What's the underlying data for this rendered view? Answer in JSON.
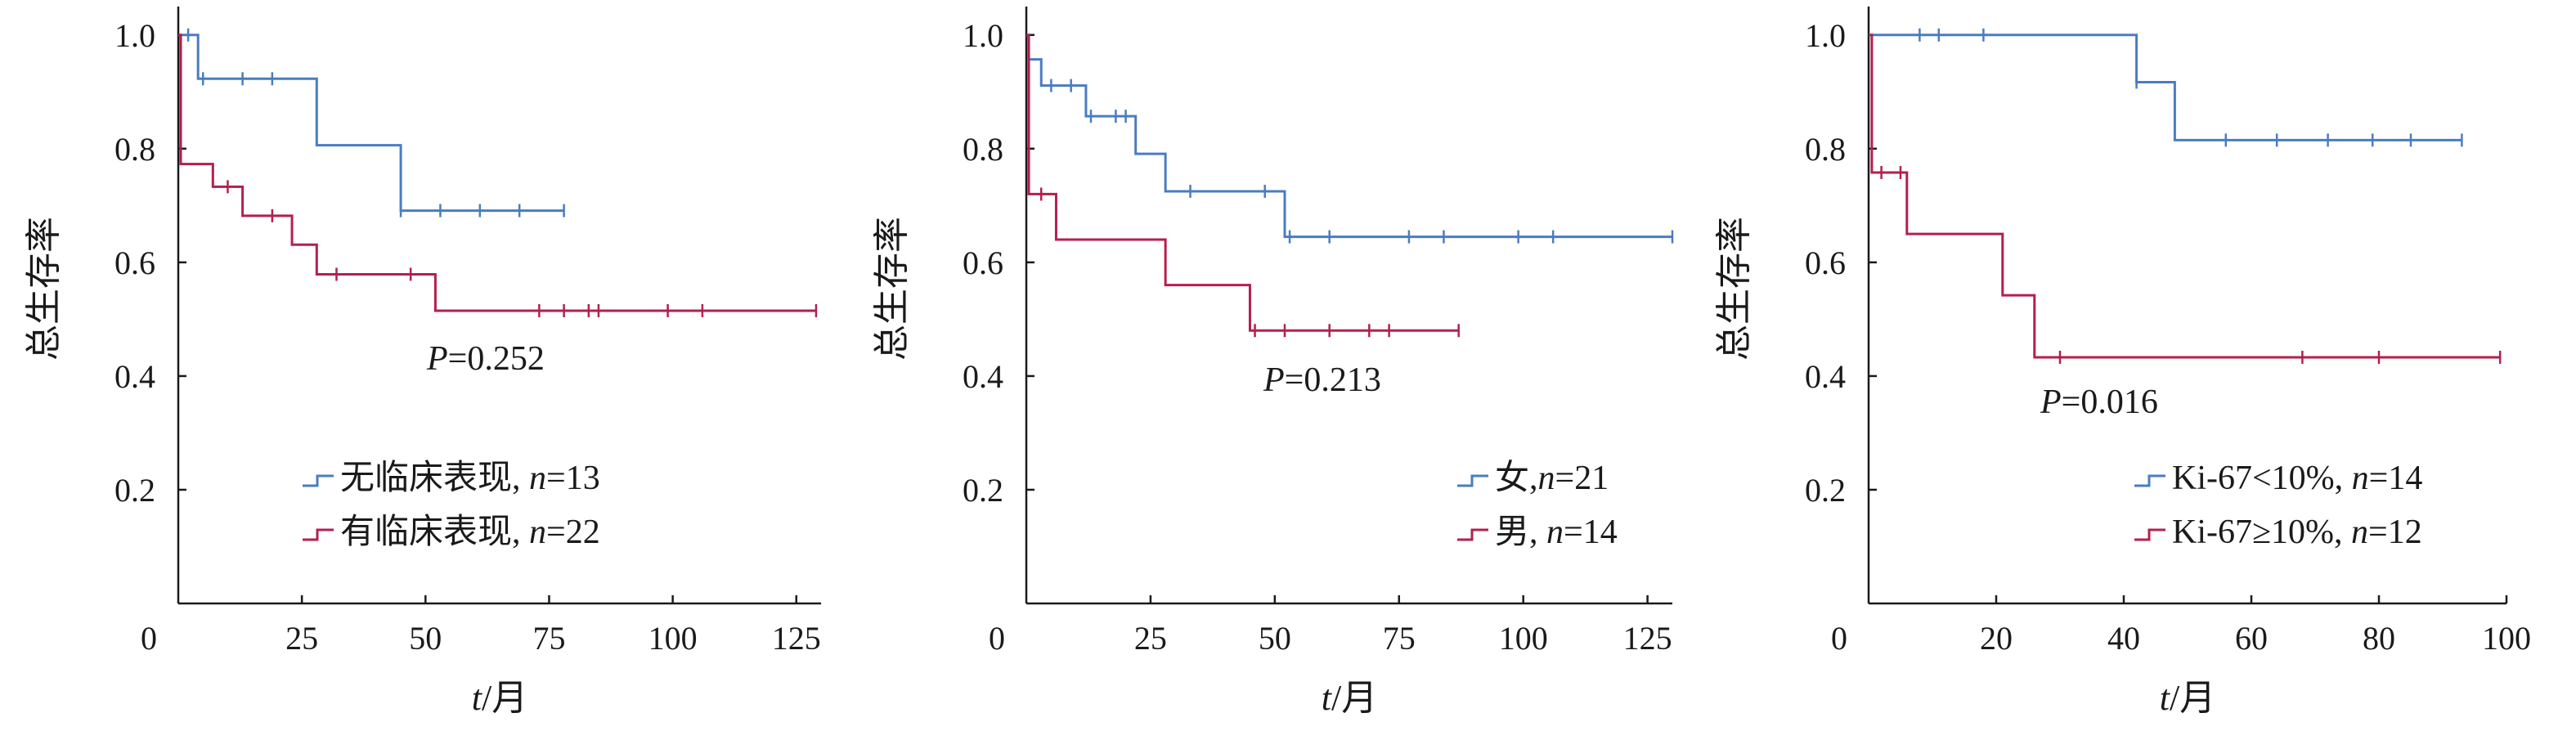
{
  "colors": {
    "blue": "#4a7cc1",
    "red": "#b3204d",
    "axis": "#1a1a1a"
  },
  "chart_data": [
    {
      "type": "line",
      "subtype": "kaplan-meier",
      "xlabel_italic": "t",
      "xlabel_rest": "/月",
      "ylabel": "总生存率",
      "xlim": [
        0,
        130
      ],
      "ylim": [
        0,
        1.05
      ],
      "xticks": [
        "0",
        "25",
        "50",
        "75",
        "100",
        "125"
      ],
      "xtick_values": [
        0,
        25,
        50,
        75,
        100,
        125
      ],
      "yticks": [
        "0.2",
        "0.4",
        "0.6",
        "0.8",
        "1.0"
      ],
      "ytick_values": [
        0.2,
        0.4,
        0.6,
        0.8,
        1.0
      ],
      "pvalue_label": "P",
      "pvalue_text": "=0.252",
      "legend_position": "bottom-center",
      "series": [
        {
          "legend_main": "无临床表现, ",
          "legend_n_label": "n",
          "legend_n_value": "=13",
          "color": "#4a7cc1",
          "steps": [
            [
              0,
              1.0
            ],
            [
              4,
              0.923
            ],
            [
              28,
              0.806
            ],
            [
              45,
              0.691
            ],
            [
              78,
              0.691
            ]
          ],
          "censors": [
            [
              2,
              1.0
            ],
            [
              5,
              0.923
            ],
            [
              13,
              0.923
            ],
            [
              19,
              0.923
            ],
            [
              45,
              0.691
            ],
            [
              53,
              0.691
            ],
            [
              61,
              0.691
            ],
            [
              69,
              0.691
            ],
            [
              78,
              0.691
            ]
          ]
        },
        {
          "legend_main": "有临床表现, ",
          "legend_n_label": "n",
          "legend_n_value": "=22",
          "color": "#b3204d",
          "steps": [
            [
              0,
              1.0
            ],
            [
              0.5,
              0.773
            ],
            [
              7,
              0.733
            ],
            [
              13,
              0.682
            ],
            [
              23,
              0.631
            ],
            [
              28,
              0.579
            ],
            [
              52,
              0.515
            ],
            [
              129,
              0.515
            ]
          ],
          "censors": [
            [
              10,
              0.733
            ],
            [
              19,
              0.682
            ],
            [
              32,
              0.579
            ],
            [
              47,
              0.579
            ],
            [
              73,
              0.515
            ],
            [
              78,
              0.515
            ],
            [
              83,
              0.515
            ],
            [
              85,
              0.515
            ],
            [
              99,
              0.515
            ],
            [
              106,
              0.515
            ],
            [
              129,
              0.515
            ]
          ]
        }
      ]
    },
    {
      "type": "line",
      "subtype": "kaplan-meier",
      "xlabel_italic": "t",
      "xlabel_rest": "/月",
      "ylabel": "总生存率",
      "xlim": [
        0,
        130
      ],
      "ylim": [
        0,
        1.05
      ],
      "xticks": [
        "0",
        "25",
        "50",
        "75",
        "100",
        "125"
      ],
      "xtick_values": [
        0,
        25,
        50,
        75,
        100,
        125
      ],
      "yticks": [
        "0.2",
        "0.4",
        "0.6",
        "0.8",
        "1.0"
      ],
      "ytick_values": [
        0.2,
        0.4,
        0.6,
        0.8,
        1.0
      ],
      "pvalue_label": "P",
      "pvalue_text": "=0.213",
      "legend_position": "bottom-right",
      "series": [
        {
          "legend_main": "女,",
          "legend_n_label": "n",
          "legend_n_value": "=21",
          "color": "#4a7cc1",
          "steps": [
            [
              0,
              1.0
            ],
            [
              0.5,
              0.957
            ],
            [
              3,
              0.911
            ],
            [
              12,
              0.857
            ],
            [
              22,
              0.791
            ],
            [
              28,
              0.725
            ],
            [
              52,
              0.645
            ],
            [
              130,
              0.645
            ]
          ],
          "censors": [
            [
              5,
              0.911
            ],
            [
              9,
              0.911
            ],
            [
              13,
              0.857
            ],
            [
              18,
              0.857
            ],
            [
              20,
              0.857
            ],
            [
              33,
              0.725
            ],
            [
              48,
              0.725
            ],
            [
              53,
              0.645
            ],
            [
              61,
              0.645
            ],
            [
              77,
              0.645
            ],
            [
              84,
              0.645
            ],
            [
              99,
              0.645
            ],
            [
              106,
              0.645
            ],
            [
              130,
              0.645
            ]
          ]
        },
        {
          "legend_main": "男, ",
          "legend_n_label": "n",
          "legend_n_value": "=14",
          "color": "#b3204d",
          "steps": [
            [
              0,
              1.0
            ],
            [
              0.5,
              0.72
            ],
            [
              6,
              0.64
            ],
            [
              28,
              0.56
            ],
            [
              45,
              0.48
            ],
            [
              87,
              0.48
            ]
          ],
          "censors": [
            [
              3,
              0.72
            ],
            [
              46,
              0.48
            ],
            [
              52,
              0.48
            ],
            [
              61,
              0.48
            ],
            [
              69,
              0.48
            ],
            [
              73,
              0.48
            ],
            [
              87,
              0.48
            ]
          ]
        }
      ]
    },
    {
      "type": "line",
      "subtype": "kaplan-meier",
      "xlabel_italic": "t",
      "xlabel_rest": "/月",
      "ylabel": "总生存率",
      "xlim": [
        0,
        100
      ],
      "ylim": [
        0,
        1.05
      ],
      "xticks": [
        "0",
        "20",
        "40",
        "60",
        "80",
        "100"
      ],
      "xtick_values": [
        0,
        20,
        40,
        60,
        80,
        100
      ],
      "yticks": [
        "0.2",
        "0.4",
        "0.6",
        "0.8",
        "1.0"
      ],
      "ytick_values": [
        0.2,
        0.4,
        0.6,
        0.8,
        1.0
      ],
      "pvalue_label": "P",
      "pvalue_text": "=0.016",
      "legend_position": "bottom-right",
      "series": [
        {
          "legend_main": "Ki-67<10%, ",
          "legend_n_label": "n",
          "legend_n_value": "=14",
          "color": "#4a7cc1",
          "steps": [
            [
              0,
              1.0
            ],
            [
              42,
              0.917
            ],
            [
              48,
              0.815
            ],
            [
              93,
              0.815
            ]
          ],
          "censors": [
            [
              8,
              1.0
            ],
            [
              11,
              1.0
            ],
            [
              18,
              1.0
            ],
            [
              42,
              0.917
            ],
            [
              56,
              0.815
            ],
            [
              64,
              0.815
            ],
            [
              72,
              0.815
            ],
            [
              79,
              0.815
            ],
            [
              85,
              0.815
            ],
            [
              93,
              0.815
            ]
          ]
        },
        {
          "legend_main": "Ki-67≥10%, ",
          "legend_n_label": "n",
          "legend_n_value": "=12",
          "color": "#b3204d",
          "steps": [
            [
              0,
              1.0
            ],
            [
              0.5,
              0.758
            ],
            [
              6,
              0.65
            ],
            [
              21,
              0.542
            ],
            [
              26,
              0.433
            ],
            [
              99,
              0.433
            ]
          ],
          "censors": [
            [
              2,
              0.758
            ],
            [
              5,
              0.758
            ],
            [
              30,
              0.433
            ],
            [
              68,
              0.433
            ],
            [
              80,
              0.433
            ],
            [
              99,
              0.433
            ]
          ]
        }
      ]
    }
  ]
}
